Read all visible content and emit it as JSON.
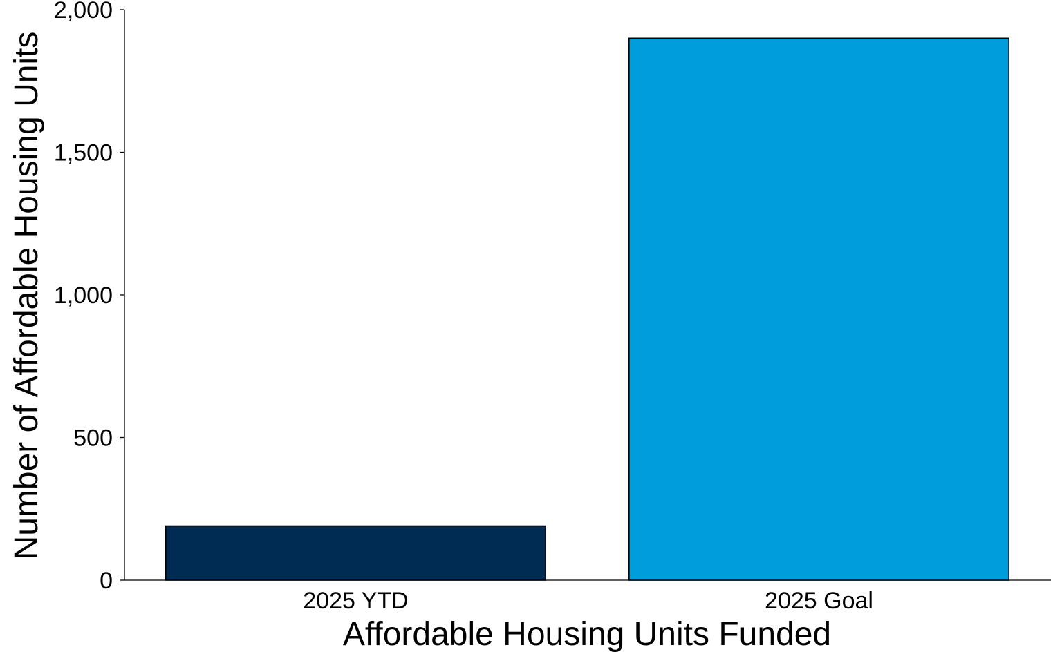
{
  "chart_data": {
    "type": "bar",
    "title": "",
    "xlabel": "Affordable Housing Units Funded",
    "ylabel": "Number of Affordable Housing Units",
    "categories": [
      "2025 YTD",
      "2025 Goal"
    ],
    "values": [
      190,
      1900
    ],
    "colors": [
      "#002b53",
      "#009ddd"
    ],
    "ylim": [
      0,
      2000
    ],
    "yticks": [
      0,
      500,
      1000,
      1500,
      2000
    ],
    "ytick_labels": [
      "0",
      "500",
      "1,000",
      "1,500",
      "2,000"
    ],
    "grid": false,
    "legend": "none"
  }
}
